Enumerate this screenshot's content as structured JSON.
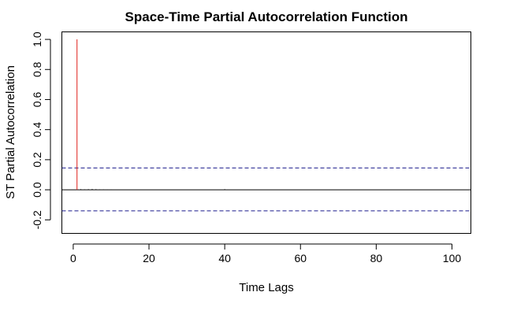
{
  "chart_data": {
    "type": "bar",
    "title": "Space-Time Partial Autocorrelation Function",
    "xlabel": "Time Lags",
    "ylabel": "ST Partial Autocorrelation",
    "xlim": [
      -3,
      105
    ],
    "ylim": [
      -0.29,
      1.05
    ],
    "x_ticks": [
      0,
      20,
      40,
      60,
      80,
      100
    ],
    "y_ticks": [
      -0.2,
      0.0,
      0.2,
      0.4,
      0.6,
      0.8,
      1.0
    ],
    "x_tick_labels": [
      "0",
      "20",
      "40",
      "60",
      "80",
      "100"
    ],
    "y_tick_labels": [
      "-0.2",
      "0.0",
      "0.2",
      "0.4",
      "0.6",
      "0.8",
      "1.0"
    ],
    "confidence_bounds": [
      0.145,
      -0.14
    ],
    "series": [
      {
        "x": [
          1,
          2,
          3,
          4,
          5,
          6,
          7,
          8,
          9,
          10,
          40
        ],
        "values": [
          1.0,
          0.004,
          0.003,
          0.004,
          0.005,
          0.004,
          0.002,
          0.002,
          0.001,
          0.001,
          0.004
        ]
      }
    ],
    "highlight_index": 0,
    "colors": {
      "highlight": "#e0201b",
      "bar": "#000000",
      "confidence": "#1a1a8c",
      "axes": "#000000"
    },
    "grid": false
  }
}
